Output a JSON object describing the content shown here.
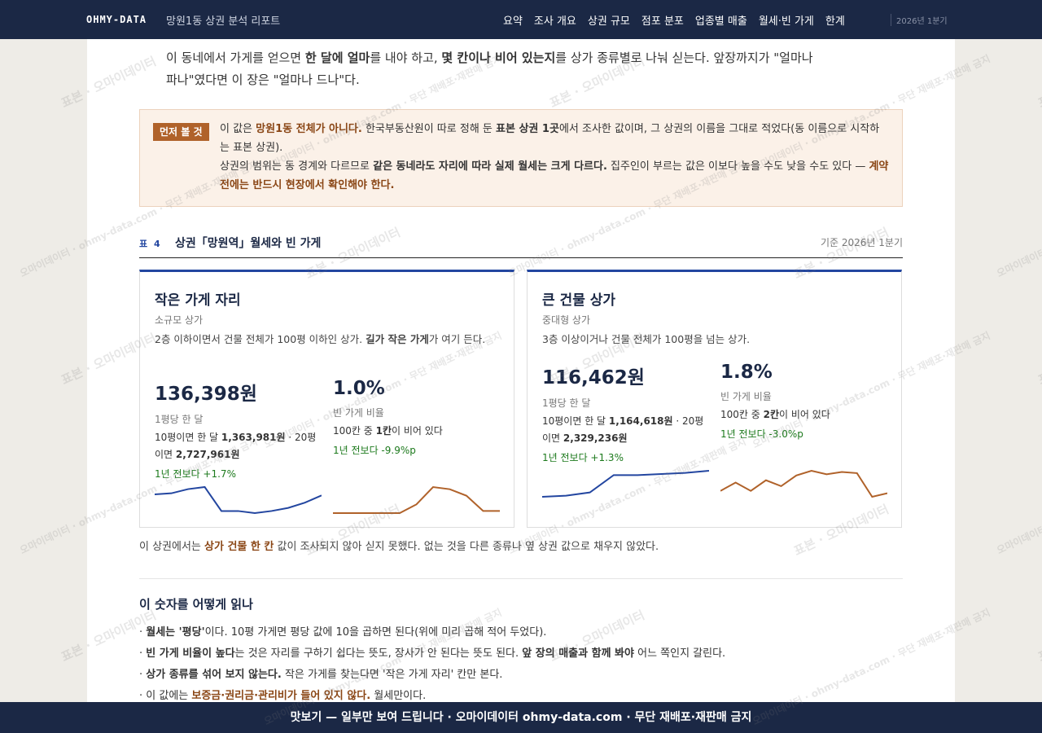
{
  "nav": {
    "brand": "OHMY-DATA",
    "report": "망원1동 상권 분석 리포트",
    "links": [
      "요약",
      "조사 개요",
      "상권 규모",
      "점포 분포",
      "업종별 매출",
      "월세·빈 가게",
      "한계"
    ],
    "period": "2026년 1분기"
  },
  "intro": [
    "이 동네에서 가게를 얻으면 ",
    "한 달에 얼마",
    "를 내야 하고, ",
    "몇 칸이나 비어 있는지",
    "를 상가 종류별로 나눠 싣는다. 앞장까지가 \"얼마나 파나\"였다면 이 장은 \"얼마나 드나\"다."
  ],
  "notice": {
    "badge": "먼저 볼 것",
    "line1": [
      "이 값은 ",
      "망원1동 전체가 아니다.",
      " 한국부동산원이 따로 정해 둔 ",
      "표본 상권 1곳",
      "에서 조사한 값이며, 그 상권의 이름을 그대로 적었다(동 이름으로 시작하는 표본 상권)."
    ],
    "line2": [
      "상권의 범위는 동 경계와 다르므로 ",
      "같은 동네라도 자리에 따라 실제 월세는 크게 다르다.",
      " 집주인이 부르는 값은 이보다 높을 수도 낮을 수도 있다 — ",
      "계약 전에는 반드시 현장에서 확인해야 한다."
    ]
  },
  "table": {
    "label": "표 4",
    "title": "상권「망원역」월세와 빈 가게",
    "basis": "기준 2026년 1분기"
  },
  "cards": [
    {
      "title": "작은 가게 자리",
      "subtitle": "소규모 상가",
      "desc": [
        "2층 이하이면서 건물 전체가 100평 이하인 상가. ",
        "길가 작은 가게",
        "가 여기 든다."
      ],
      "rent": "136,398원",
      "rent_label": "1평당 한 달",
      "rent_detail": [
        "10평이면 한 달 ",
        "1,363,981원",
        " · 20평이면 ",
        "2,727,961원"
      ],
      "rent_change": "1년 전보다 +1.7%",
      "vacancy": "1.0%",
      "vacancy_label": "빈 가게 비율",
      "vacancy_detail": [
        "100칸 중 ",
        "1칸",
        "이 비어 있다"
      ],
      "vacancy_change": "1년 전보다 -9.9%p",
      "rent_trend": {
        "color": "#2346a0",
        "values": [
          30,
          31,
          35,
          37,
          14,
          14,
          12,
          14,
          17,
          22,
          29
        ]
      },
      "vacancy_trend": {
        "color": "#b0622a",
        "values": [
          0,
          0,
          0,
          0,
          0,
          8,
          24,
          22,
          16,
          2,
          2
        ]
      }
    },
    {
      "title": "큰 건물 상가",
      "subtitle": "중대형 상가",
      "desc": [
        "3층 이상이거나 건물 전체가 100평을 넘는 상가."
      ],
      "rent": "116,462원",
      "rent_label": "1평당 한 달",
      "rent_detail": [
        "10평이면 한 달 ",
        "1,164,618원",
        " · 20평이면 ",
        "2,329,236원"
      ],
      "rent_change": "1년 전보다 +1.3%",
      "vacancy": "1.8%",
      "vacancy_label": "빈 가게 비율",
      "vacancy_detail": [
        "100칸 중 ",
        "2칸",
        "이 비어 있다"
      ],
      "vacancy_change": "1년 전보다 -3.0%p",
      "rent_trend": {
        "color": "#2346a0",
        "values": [
          0,
          1,
          4,
          20,
          20,
          21,
          22,
          24
        ]
      },
      "vacancy_trend": {
        "color": "#b0622a",
        "values": [
          5,
          12,
          5,
          14,
          9,
          18,
          22,
          19,
          21,
          20,
          0,
          3
        ]
      }
    }
  ],
  "missing_note": [
    "이 상권에서는 ",
    "상가 건물 한 칸",
    " 값이 조사되지 않아 싣지 못했다. 없는 것을 다른 종류나 옆 상권 값으로 채우지 않았다."
  ],
  "howto": {
    "title": "이 숫자를 어떻게 읽나",
    "items": [
      [
        "· ",
        "월세는 '평당'",
        "이다. 10평 가게면 평당 값에 10을 곱하면 된다(위에 미리 곱해 적어 두었다)."
      ],
      [
        "· ",
        "빈 가게 비율이 높다",
        "는 것은 자리를 구하기 쉽다는 뜻도, 장사가 안 된다는 뜻도 된다. ",
        "앞 장의 매출과 함께 봐야",
        " 어느 쪽인지 갈린다."
      ],
      [
        "· ",
        "상가 종류를 섞어 보지 않는다.",
        " 작은 가게를 찾는다면 '작은 가게 자리' 칸만 본다."
      ],
      [
        "· 이 값에는 ",
        "보증금·권리금·관리비가 들어 있지 않다.",
        " 월세만이다."
      ]
    ]
  },
  "footer": "맛보기 — 일부만 보여 드립니다 · 오마이데이터 ohmy-data.com · 무단 재배포·재판매 금지",
  "watermark": {
    "short": "표본 · 오마이데이터",
    "long": "오마이데이터 · ohmy-data.com · 무단 재배포·재판매 금지"
  }
}
